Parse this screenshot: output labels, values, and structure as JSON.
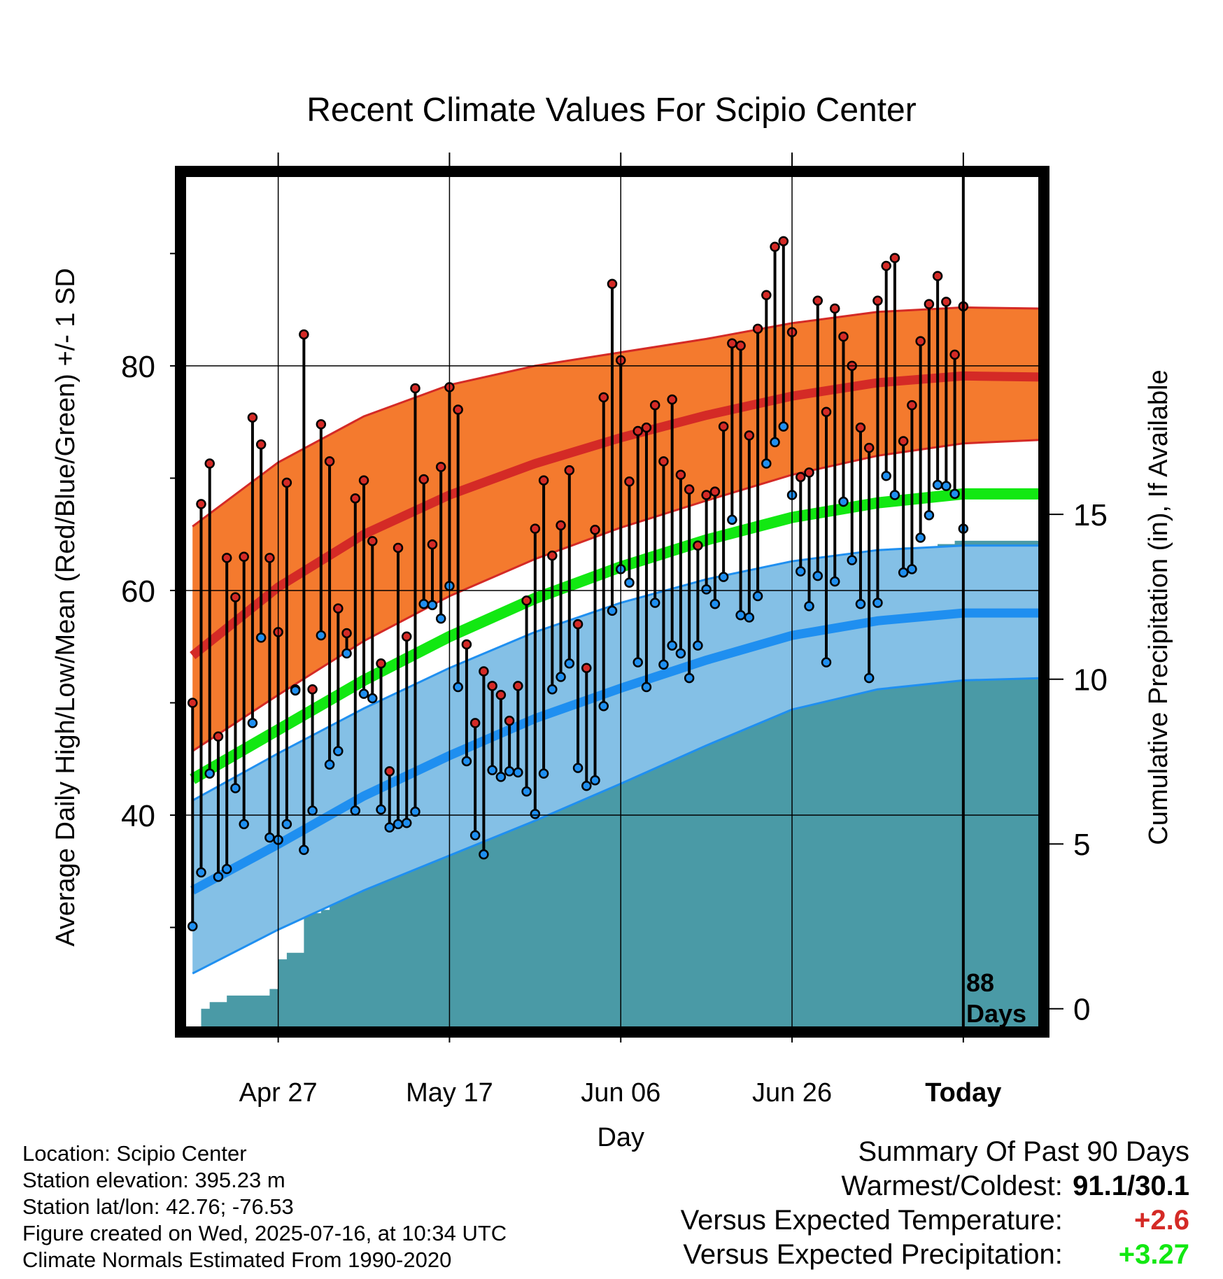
{
  "chart_data": {
    "type": "line",
    "title": "Recent Climate Values For Scipio Center",
    "xlabel": "Day",
    "ylabel": "Average Daily High/Low/Mean (Red/Blue/Green) +/- 1 SD",
    "y2label": "Cumulative Precipitation (in), If Available",
    "x_ticks": [
      "Apr 27",
      "May 17",
      "Jun 06",
      "Jun 26",
      "Today"
    ],
    "x_tick_days": [
      10,
      30,
      50,
      70,
      90
    ],
    "xlim": [
      -1,
      99
    ],
    "ylim": [
      21,
      97
    ],
    "y_ticks": [
      40,
      60,
      80
    ],
    "y_minor_ticks": [
      30,
      50,
      70,
      90
    ],
    "y2lim": [
      -0.6,
      25.3
    ],
    "y2_ticks": [
      0,
      5,
      10,
      15
    ],
    "today_label": "88\nDays",
    "series_colors": {
      "high_band": "#f47a2e",
      "high_mean": "#d42a26",
      "low_band": "#84c0e6",
      "low_mean": "#1f8ff0",
      "mean": "#12e812",
      "precip": "#4a9aa6",
      "high_dot": "#d42a26",
      "low_dot": "#1f8ff0"
    },
    "normals": {
      "days": [
        0,
        10,
        20,
        30,
        40,
        50,
        60,
        70,
        80,
        90,
        99
      ],
      "high_mean": [
        54.2,
        60.3,
        65.0,
        68.5,
        71.3,
        73.6,
        75.6,
        77.3,
        78.5,
        79.1,
        79.0
      ],
      "high_upper": [
        65.7,
        71.4,
        75.5,
        78.3,
        80.0,
        81.2,
        82.4,
        83.8,
        84.8,
        85.2,
        85.1
      ],
      "high_lower": [
        45.7,
        50.7,
        55.5,
        59.5,
        62.8,
        65.6,
        68.0,
        70.3,
        72.0,
        73.1,
        73.4
      ],
      "mean": [
        43.2,
        47.6,
        52.0,
        55.9,
        59.3,
        62.1,
        64.5,
        66.5,
        67.8,
        68.6,
        68.6
      ],
      "low_mean": [
        33.3,
        37.4,
        41.7,
        45.3,
        48.6,
        51.3,
        53.8,
        56.0,
        57.3,
        58.0,
        58.0
      ],
      "low_upper": [
        41.3,
        45.5,
        49.5,
        53.1,
        56.3,
        58.9,
        61.0,
        62.6,
        63.6,
        64.0,
        64.0
      ],
      "low_lower": [
        25.9,
        29.8,
        33.3,
        36.4,
        39.5,
        42.8,
        46.2,
        49.4,
        51.2,
        52.0,
        52.2
      ]
    },
    "high": [
      50.0,
      67.7,
      71.3,
      47.0,
      62.9,
      59.4,
      63.0,
      75.4,
      73.0,
      62.9,
      56.3,
      69.6,
      51.2,
      82.8,
      51.2,
      74.8,
      71.5,
      58.4,
      56.2,
      68.2,
      69.8,
      64.4,
      53.5,
      43.9,
      63.8,
      55.9,
      78.0,
      69.9,
      64.1,
      71.0,
      78.1,
      76.1,
      55.2,
      48.2,
      52.8,
      51.5,
      50.7,
      48.4,
      51.5,
      59.1,
      65.5,
      69.8,
      63.1,
      65.8,
      70.7,
      57.0,
      53.1,
      65.4,
      77.2,
      87.3,
      80.5,
      69.7,
      74.2,
      74.5,
      76.5,
      71.5,
      77.0,
      70.3,
      69.0,
      64.0,
      68.5,
      68.8,
      74.6,
      82.0,
      81.8,
      73.8,
      83.3,
      86.3,
      90.6,
      91.1,
      83.0,
      70.1,
      70.5,
      85.8,
      75.9,
      85.1,
      82.6,
      80.0,
      74.5,
      72.7,
      85.8,
      88.9,
      89.6,
      73.3,
      76.5,
      82.2,
      85.5,
      88.0,
      85.7,
      81.0,
      85.3
    ],
    "low": [
      30.1,
      34.9,
      43.7,
      34.5,
      35.2,
      42.4,
      39.2,
      48.2,
      55.8,
      38.0,
      37.8,
      39.2,
      51.1,
      36.9,
      40.4,
      56.0,
      44.5,
      45.7,
      54.4,
      40.4,
      50.8,
      50.4,
      40.5,
      38.9,
      39.2,
      39.3,
      40.3,
      58.8,
      58.7,
      57.5,
      60.4,
      51.4,
      44.8,
      38.2,
      36.5,
      44.0,
      43.4,
      43.9,
      43.8,
      42.1,
      40.1,
      43.7,
      51.2,
      52.3,
      53.5,
      44.2,
      42.6,
      43.1,
      49.7,
      58.2,
      61.9,
      60.7,
      53.6,
      51.4,
      58.9,
      53.4,
      55.1,
      54.4,
      52.2,
      55.1,
      60.1,
      58.8,
      61.2,
      66.3,
      57.8,
      57.6,
      59.5,
      71.3,
      73.2,
      74.6,
      68.5,
      61.7,
      58.6,
      61.3,
      53.6,
      60.8,
      67.9,
      62.7,
      58.8,
      52.2,
      58.9,
      70.2,
      68.5,
      61.6,
      61.9,
      64.7,
      66.7,
      69.4,
      69.3,
      68.6,
      65.5
    ],
    "precip_days": [
      1,
      2,
      3,
      4,
      5,
      6,
      7,
      8,
      9,
      10,
      11,
      12,
      13,
      14,
      15,
      16,
      17,
      18,
      19,
      20,
      21,
      22,
      23,
      24,
      25,
      26,
      27,
      28,
      29,
      30,
      31,
      32,
      33,
      34,
      35,
      36,
      37,
      38,
      39,
      40,
      41,
      42,
      43,
      44,
      45,
      46,
      47,
      48,
      49,
      50,
      51,
      52,
      53,
      54,
      55,
      56,
      57,
      58,
      59,
      60,
      61,
      62,
      63,
      64,
      65,
      66,
      67,
      68,
      69,
      70,
      71,
      72,
      73,
      74,
      75,
      76,
      77,
      78,
      79,
      80,
      81,
      82,
      83,
      84,
      85,
      86,
      87,
      88,
      89,
      90,
      99
    ],
    "precip": [
      0.0,
      0.2,
      0.2,
      0.4,
      0.4,
      0.4,
      0.4,
      0.4,
      0.6,
      1.5,
      1.7,
      1.7,
      2.9,
      2.9,
      3.0,
      3.2,
      3.5,
      3.7,
      4.0,
      5.6,
      6.3,
      6.3,
      6.5,
      6.6,
      6.6,
      6.7,
      7.0,
      7.1,
      7.2,
      7.4,
      7.8,
      7.8,
      7.8,
      7.8,
      8.1,
      8.2,
      8.6,
      9.0,
      9.1,
      9.2,
      9.2,
      9.5,
      9.6,
      9.8,
      9.9,
      10.0,
      10.0,
      10.0,
      10.0,
      10.0,
      11.1,
      11.3,
      11.3,
      12.2,
      12.4,
      12.5,
      12.5,
      12.5,
      12.5,
      12.6,
      12.6,
      12.6,
      12.6,
      12.7,
      12.9,
      12.9,
      13.0,
      13.0,
      13.0,
      13.0,
      13.0,
      13.0,
      13.1,
      13.1,
      13.2,
      13.2,
      13.2,
      13.4,
      13.4,
      13.4,
      13.5,
      13.9,
      14.0,
      14.0,
      14.0,
      14.0,
      14.1,
      14.1,
      14.2,
      14.2,
      14.3
    ]
  },
  "info": {
    "location": "Location: Scipio Center",
    "elevation": "Station elevation: 395.23 m",
    "latlon": "Station lat/lon: 42.76; -76.53",
    "created": "Figure created on Wed, 2025-07-16, at 10:34 UTC",
    "normals": "Climate Normals Estimated From 1990-2020"
  },
  "summary": {
    "heading": "Summary Of Past 90 Days",
    "warm_cold_label": "Warmest/Coldest:",
    "warm_cold_value": "91.1/30.1",
    "temp_label": "Versus Expected Temperature:",
    "temp_value": "+2.6",
    "temp_color": "#d42a26",
    "precip_label": "Versus Expected Precipitation:",
    "precip_value": "+3.27",
    "precip_color": "#12e812"
  }
}
